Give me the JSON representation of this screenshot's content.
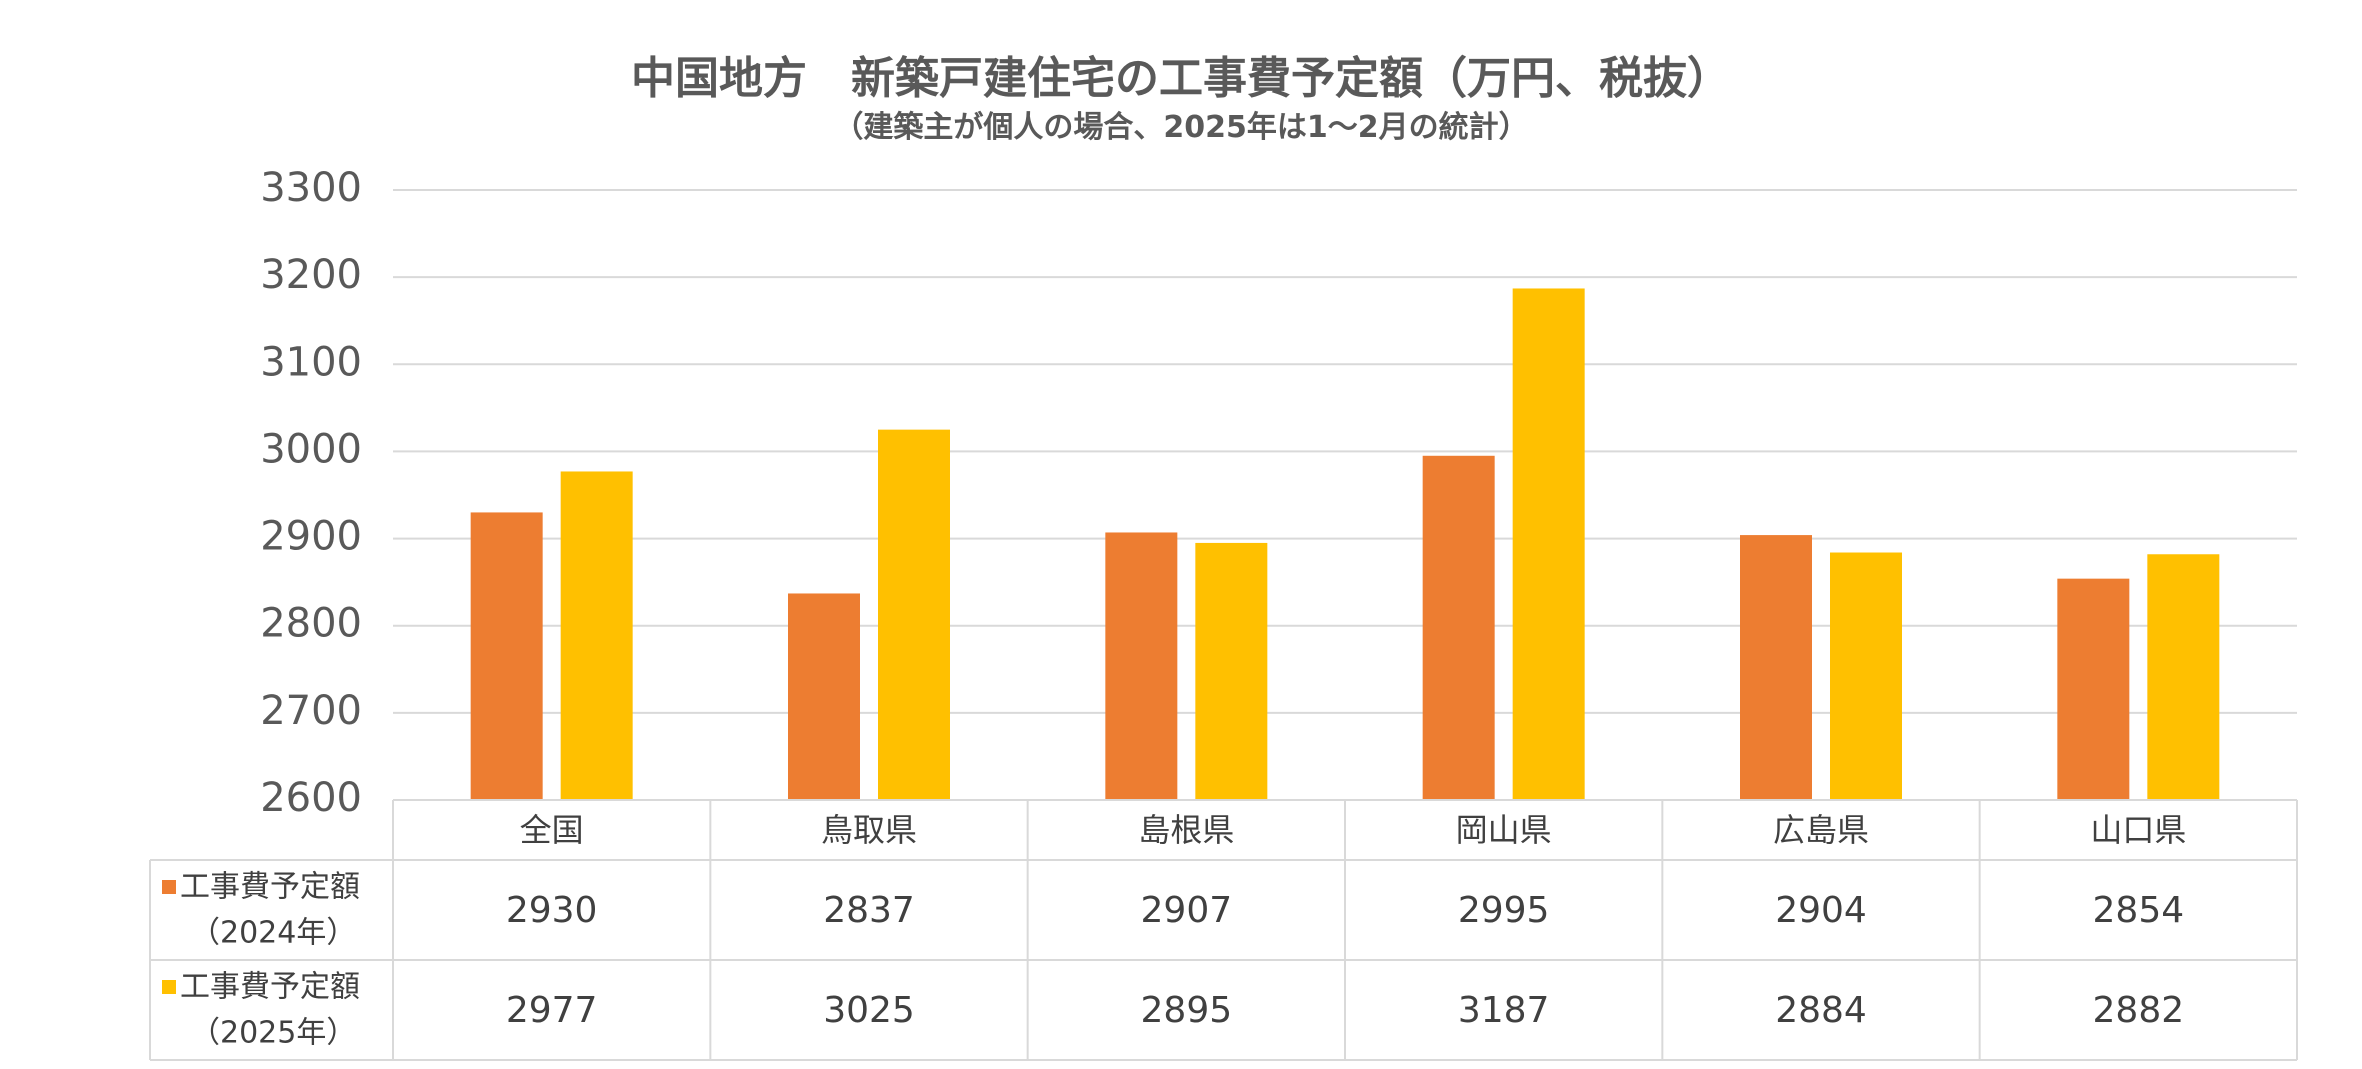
{
  "chart_data": {
    "type": "bar",
    "title": "中国地方　新築戸建住宅の工事費予定額（万円、税抜）",
    "subtitle": "（建築主が個人の場合、2025年は1～2月の統計）",
    "categories": [
      "全国",
      "鳥取県",
      "島根県",
      "岡山県",
      "広島県",
      "山口県"
    ],
    "series": [
      {
        "name": "工事費予定額（2024年）",
        "legend_line1": "工事費予定額",
        "legend_line2": "（2024年）",
        "color": "#ED7D31",
        "values": [
          2930,
          2837,
          2907,
          2995,
          2904,
          2854
        ]
      },
      {
        "name": "工事費予定額（2025年）",
        "legend_line1": "工事費予定額",
        "legend_line2": "（2025年）",
        "color": "#FFC000",
        "values": [
          2977,
          3025,
          2895,
          3187,
          2884,
          2882
        ]
      }
    ],
    "ylim": [
      2600,
      3300
    ],
    "yticks": [
      2600,
      2700,
      2800,
      2900,
      3000,
      3100,
      3200,
      3300
    ],
    "grid": true,
    "data_table": true
  }
}
